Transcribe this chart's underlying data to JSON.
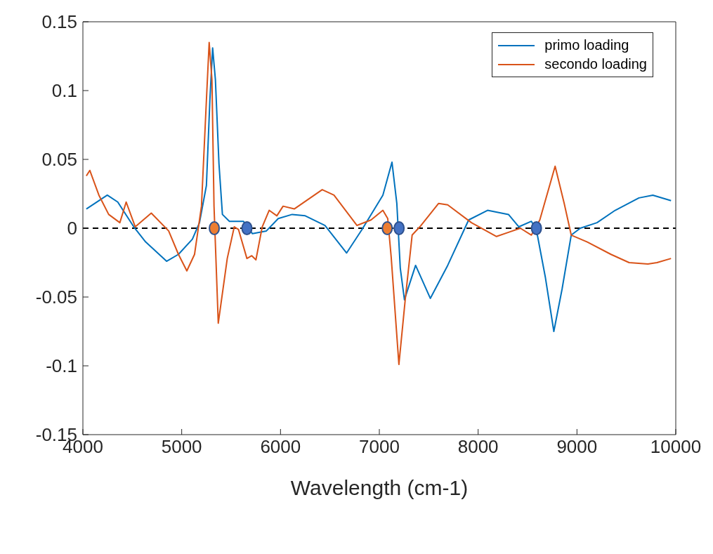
{
  "chart_data": {
    "type": "line",
    "xlabel": "Wavelength (cm-1)",
    "xlim": [
      4000,
      10000
    ],
    "xticks": [
      4000,
      5000,
      6000,
      7000,
      8000,
      9000,
      10000
    ],
    "ylim": [
      -0.15,
      0.15
    ],
    "yticks": [
      -0.15,
      -0.1,
      -0.05,
      0,
      0.05,
      0.1,
      0.15
    ],
    "grid": false,
    "legend": "top right",
    "series": [
      {
        "name": "primo loading",
        "color": "#0072bd",
        "marker": "none",
        "x": [
          4035,
          4247,
          4353,
          4515,
          4635,
          4847,
          4967,
          5108,
          5180,
          5250,
          5285,
          5313,
          5341,
          5377,
          5412,
          5483,
          5624,
          5716,
          5857,
          5977,
          6118,
          6250,
          6450,
          6669,
          6824,
          7036,
          7128,
          7177,
          7212,
          7254,
          7367,
          7516,
          7692,
          7904,
          8095,
          8307,
          8412,
          8539,
          8589,
          8681,
          8766,
          8850,
          8942,
          9034,
          9203,
          9387,
          9627,
          9768,
          9952
        ],
        "values": [
          0.014,
          0.024,
          0.019,
          0.001,
          -0.01,
          -0.024,
          -0.019,
          -0.008,
          0.004,
          0.031,
          0.093,
          0.131,
          0.108,
          0.047,
          0.01,
          0.005,
          0.005,
          -0.004,
          -0.002,
          0.007,
          0.01,
          0.009,
          0.002,
          -0.018,
          -0.001,
          0.024,
          0.048,
          0.018,
          -0.029,
          -0.052,
          -0.027,
          -0.051,
          -0.027,
          0.006,
          0.013,
          0.01,
          0.001,
          0.005,
          -0.001,
          -0.036,
          -0.075,
          -0.044,
          -0.005,
          0,
          0.004,
          0.013,
          0.022,
          0.024,
          0.02
        ]
      },
      {
        "name": "secondo loading",
        "color": "#d95319",
        "marker": "none",
        "x": [
          4035,
          4070,
          4162,
          4261,
          4374,
          4438,
          4530,
          4692,
          4868,
          4967,
          5052,
          5130,
          5200,
          5250,
          5278,
          5306,
          5327,
          5370,
          5461,
          5532,
          5575,
          5660,
          5709,
          5751,
          5815,
          5885,
          5963,
          6026,
          6139,
          6422,
          6541,
          6774,
          6916,
          7036,
          7085,
          7120,
          7198,
          7262,
          7332,
          7410,
          7600,
          7692,
          7932,
          8186,
          8307,
          8427,
          8539,
          8624,
          8779,
          8871,
          8942,
          9104,
          9344,
          9528,
          9718,
          9810,
          9952
        ],
        "values": [
          0.038,
          0.042,
          0.024,
          0.01,
          0.004,
          0.019,
          0.001,
          0.011,
          -0.002,
          -0.019,
          -0.031,
          -0.019,
          0.016,
          0.093,
          0.135,
          0.108,
          0.016,
          -0.069,
          -0.022,
          0.001,
          -0.001,
          -0.022,
          -0.02,
          -0.023,
          0.001,
          0.013,
          0.009,
          0.016,
          0.014,
          0.028,
          0.024,
          0.002,
          0.006,
          0.013,
          0.007,
          -0.021,
          -0.099,
          -0.052,
          -0.005,
          0.001,
          0.018,
          0.017,
          0.004,
          -0.006,
          -0.003,
          0,
          -0.005,
          0.006,
          0.045,
          0.018,
          -0.005,
          -0.01,
          -0.019,
          -0.025,
          -0.026,
          -0.025,
          -0.022
        ]
      },
      {
        "type": "scatter",
        "color": "#ed7d31",
        "marker": "circle",
        "x": [
          5330,
          7080
        ],
        "values": [
          0,
          0
        ]
      },
      {
        "type": "scatter",
        "color": "#4472c4",
        "marker": "circle",
        "x": [
          5660,
          7200,
          8590
        ],
        "values": [
          0,
          0,
          0
        ]
      }
    ],
    "ref_lines": [
      {
        "axis": "y",
        "value": 0,
        "color": "#000000",
        "line_style": "dashed"
      }
    ]
  }
}
